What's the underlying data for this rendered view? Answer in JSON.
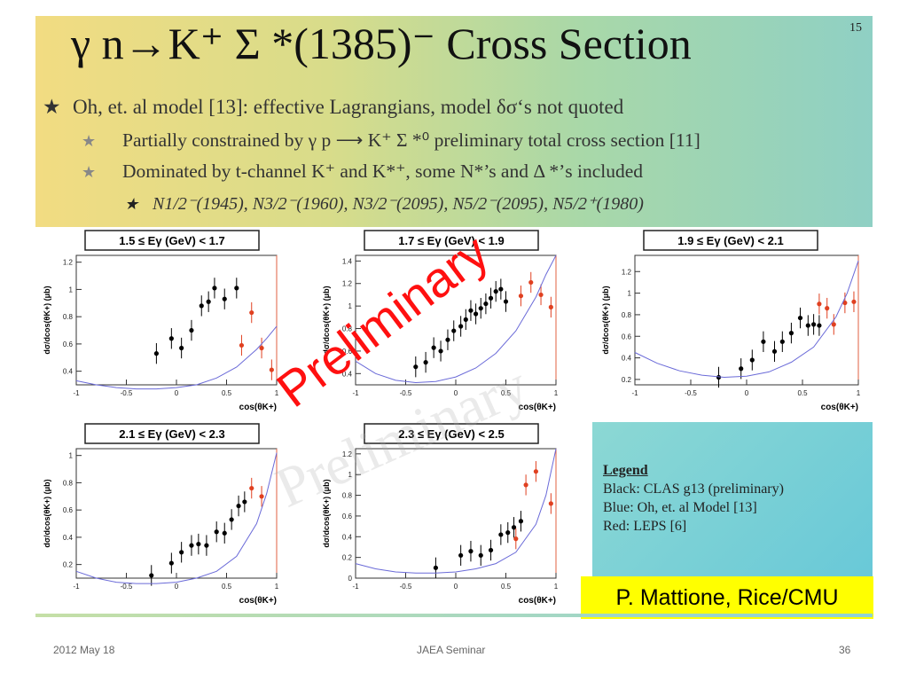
{
  "slide": {
    "title": "γ n→K⁺ Σ *(1385)⁻ Cross Section",
    "number": "15",
    "bullets": [
      "Oh, et. al model [13]: effective Lagrangians, model δσ‘s not quoted",
      "Partially constrained by  γ p ⟶ K⁺ Σ *⁰ preliminary total cross section [11]",
      "Dominated by t-channel K⁺ and K*⁺, some N*’s and  Δ *’s included",
      "N1/2⁻(1945), N3/2⁻(1960), N3/2⁻(2095), N5/2⁻(2095), N5/2⁺(1980)"
    ],
    "legend": {
      "heading": "Legend",
      "lines": [
        "Black: CLAS g13 (preliminary)",
        "Blue: Oh, et. al Model [13]",
        "Red: LEPS [6]"
      ]
    },
    "author": "P. Mattione, Rice/CMU",
    "watermark": "Preliminary",
    "footer": {
      "date": "2012 May 18",
      "center": "JAEA Seminar",
      "page": "36"
    },
    "colors": {
      "model": "#6a6ad8",
      "clas": "#000000",
      "leps": "#e04020",
      "watermark": "#ff1010"
    }
  },
  "chart_data": [
    {
      "type": "scatter",
      "title": "1.5 ≤ Eγ (GeV) < 1.7",
      "xlabel": "cos(θK+)",
      "ylabel": "dσ/dcos(θK+) (μb)",
      "xlim": [
        -1,
        1
      ],
      "ylim": [
        0.3,
        1.25
      ],
      "xticks": [
        -1,
        -0.5,
        0,
        0.5,
        1
      ],
      "yticks": [
        0.4,
        0.6,
        0.8,
        1,
        1.2
      ],
      "series": [
        {
          "name": "CLAS g13",
          "x": [
            -0.2,
            -0.05,
            0.05,
            0.15,
            0.25,
            0.32,
            0.38,
            0.48,
            0.6
          ],
          "y": [
            0.53,
            0.64,
            0.57,
            0.7,
            0.88,
            0.91,
            1.01,
            0.93,
            1.01
          ]
        },
        {
          "name": "LEPS",
          "x": [
            0.65,
            0.75,
            0.85,
            0.95
          ],
          "y": [
            0.59,
            0.83,
            0.57,
            0.41
          ]
        },
        {
          "name": "Oh model",
          "x": [
            -1,
            -0.8,
            -0.6,
            -0.4,
            -0.2,
            0,
            0.2,
            0.4,
            0.6,
            0.8,
            0.9,
            1
          ],
          "y": [
            0.33,
            0.3,
            0.28,
            0.27,
            0.27,
            0.28,
            0.3,
            0.35,
            0.43,
            0.56,
            0.64,
            0.73
          ]
        }
      ]
    },
    {
      "type": "scatter",
      "title": "1.7 ≤ Eγ (GeV) < 1.9",
      "xlabel": "cos(θK+)",
      "ylabel": "dσ/dcos(θK+) (μb)",
      "xlim": [
        -1,
        1
      ],
      "ylim": [
        0.3,
        1.45
      ],
      "xticks": [
        -1,
        -0.5,
        0,
        0.5,
        1
      ],
      "yticks": [
        0.4,
        0.6,
        0.8,
        1,
        1.2,
        1.4
      ],
      "series": [
        {
          "name": "CLAS g13",
          "x": [
            -0.4,
            -0.3,
            -0.22,
            -0.15,
            -0.08,
            -0.02,
            0.05,
            0.1,
            0.15,
            0.2,
            0.25,
            0.3,
            0.35,
            0.4,
            0.45,
            0.5
          ],
          "y": [
            0.46,
            0.5,
            0.63,
            0.6,
            0.7,
            0.78,
            0.82,
            0.88,
            0.96,
            0.93,
            0.98,
            1.02,
            1.07,
            1.13,
            1.15,
            1.04
          ]
        },
        {
          "name": "LEPS",
          "x": [
            0.65,
            0.75,
            0.85,
            0.95
          ],
          "y": [
            1.09,
            1.21,
            1.1,
            0.99
          ]
        },
        {
          "name": "Oh model",
          "x": [
            -1,
            -0.8,
            -0.6,
            -0.4,
            -0.2,
            0,
            0.2,
            0.4,
            0.6,
            0.8,
            0.9,
            1
          ],
          "y": [
            0.51,
            0.4,
            0.34,
            0.32,
            0.33,
            0.37,
            0.45,
            0.58,
            0.78,
            1.08,
            1.28,
            1.5
          ]
        }
      ]
    },
    {
      "type": "scatter",
      "title": "1.9 ≤ Eγ (GeV) < 2.1",
      "xlabel": "cos(θK+)",
      "ylabel": "dσ/dcos(θK+) (μb)",
      "xlim": [
        -1,
        1
      ],
      "ylim": [
        0.15,
        1.35
      ],
      "xticks": [
        -1,
        -0.5,
        0,
        0.5,
        1
      ],
      "yticks": [
        0.2,
        0.4,
        0.6,
        0.8,
        1,
        1.2
      ],
      "series": [
        {
          "name": "CLAS g13",
          "x": [
            -0.25,
            -0.05,
            0.05,
            0.15,
            0.25,
            0.32,
            0.4,
            0.48,
            0.55,
            0.6,
            0.65
          ],
          "y": [
            0.22,
            0.3,
            0.38,
            0.55,
            0.46,
            0.55,
            0.63,
            0.77,
            0.7,
            0.71,
            0.7
          ]
        },
        {
          "name": "LEPS",
          "x": [
            0.65,
            0.72,
            0.78,
            0.88,
            0.96
          ],
          "y": [
            0.9,
            0.86,
            0.71,
            0.91,
            0.92
          ]
        },
        {
          "name": "Oh model",
          "x": [
            -1,
            -0.8,
            -0.6,
            -0.4,
            -0.2,
            0,
            0.2,
            0.4,
            0.6,
            0.8,
            0.9,
            1
          ],
          "y": [
            0.45,
            0.35,
            0.28,
            0.24,
            0.22,
            0.23,
            0.27,
            0.36,
            0.5,
            0.78,
            1.0,
            1.3
          ]
        }
      ]
    },
    {
      "type": "scatter",
      "title": "2.1 ≤ Eγ (GeV) < 2.3",
      "xlabel": "cos(θK+)",
      "ylabel": "dσ/dcos(θK+) (μb)",
      "xlim": [
        -1,
        1
      ],
      "ylim": [
        0.1,
        1.05
      ],
      "xticks": [
        -1,
        -0.5,
        0,
        0.5,
        1
      ],
      "yticks": [
        0.2,
        0.4,
        0.6,
        0.8,
        1
      ],
      "series": [
        {
          "name": "CLAS g13",
          "x": [
            -0.25,
            -0.05,
            0.05,
            0.15,
            0.22,
            0.3,
            0.4,
            0.48,
            0.55,
            0.62,
            0.68
          ],
          "y": [
            0.12,
            0.21,
            0.29,
            0.34,
            0.35,
            0.34,
            0.44,
            0.43,
            0.53,
            0.63,
            0.66
          ]
        },
        {
          "name": "LEPS",
          "x": [
            0.75,
            0.85
          ],
          "y": [
            0.76,
            0.7
          ]
        },
        {
          "name": "Oh model",
          "x": [
            -1,
            -0.8,
            -0.6,
            -0.4,
            -0.2,
            0,
            0.2,
            0.4,
            0.6,
            0.8,
            0.9,
            1
          ],
          "y": [
            0.15,
            0.1,
            0.07,
            0.06,
            0.06,
            0.07,
            0.1,
            0.15,
            0.26,
            0.5,
            0.72,
            1.02
          ]
        }
      ]
    },
    {
      "type": "scatter",
      "title": "2.3 ≤ Eγ (GeV) < 2.5",
      "xlabel": "cos(θK+)",
      "ylabel": "dσ/dcos(θK+) (μb)",
      "xlim": [
        -1,
        1
      ],
      "ylim": [
        0,
        1.25
      ],
      "xticks": [
        -1,
        -0.5,
        0,
        0.5,
        1
      ],
      "yticks": [
        0,
        0.2,
        0.4,
        0.6,
        0.8,
        1,
        1.2
      ],
      "series": [
        {
          "name": "CLAS g13",
          "x": [
            -0.2,
            0.05,
            0.15,
            0.25,
            0.35,
            0.45,
            0.52,
            0.58,
            0.65
          ],
          "y": [
            0.1,
            0.22,
            0.26,
            0.22,
            0.27,
            0.42,
            0.44,
            0.49,
            0.55
          ]
        },
        {
          "name": "LEPS",
          "x": [
            0.6,
            0.7,
            0.8,
            0.95
          ],
          "y": [
            0.38,
            0.9,
            1.03,
            0.72
          ]
        },
        {
          "name": "Oh model",
          "x": [
            -1,
            -0.8,
            -0.6,
            -0.4,
            -0.2,
            0,
            0.2,
            0.4,
            0.6,
            0.8,
            0.9,
            1
          ],
          "y": [
            0.14,
            0.09,
            0.06,
            0.05,
            0.05,
            0.06,
            0.09,
            0.14,
            0.25,
            0.52,
            0.8,
            1.25
          ]
        }
      ]
    }
  ]
}
